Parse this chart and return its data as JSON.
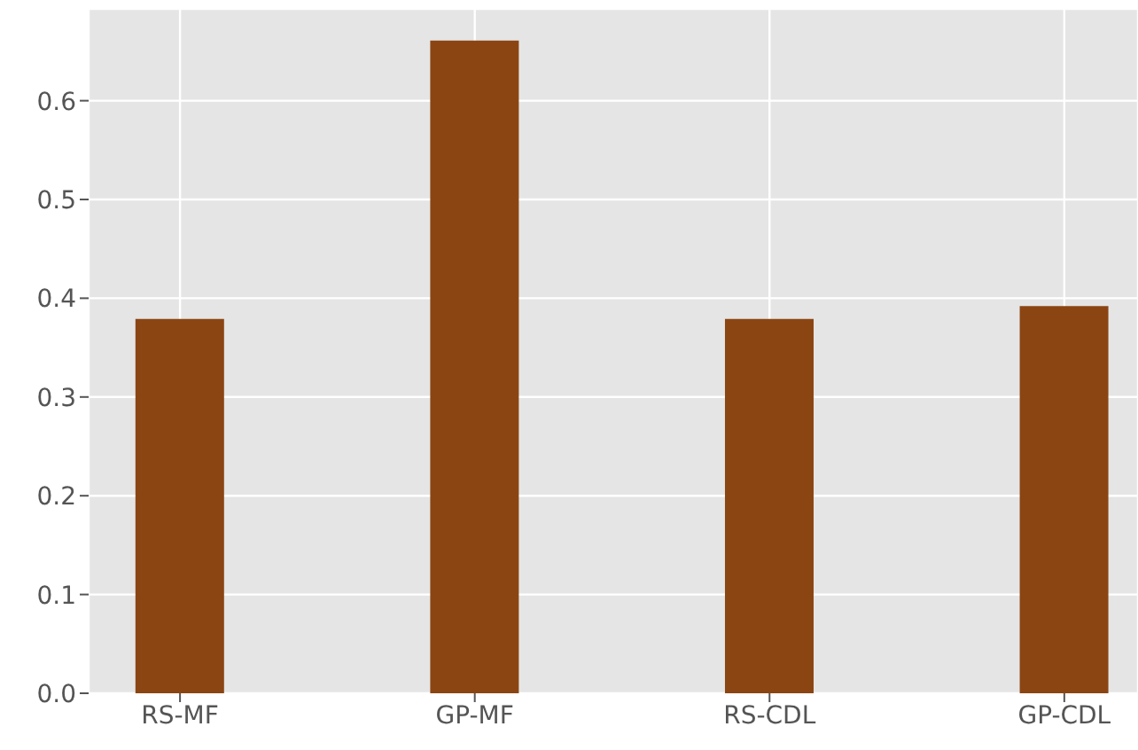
{
  "chart_data": {
    "type": "bar",
    "categories": [
      "RS-MF",
      "GP-MF",
      "RS-CDL",
      "GP-CDL"
    ],
    "values": [
      0.379,
      0.661,
      0.379,
      0.392
    ],
    "color": "#8b4513",
    "ylim": [
      0,
      0.693
    ],
    "yticks": [
      {
        "value": 0,
        "label": "0.0"
      },
      0.1,
      0.2,
      0.3,
      0.4,
      0.5,
      0.6
    ],
    "grid": true
  }
}
